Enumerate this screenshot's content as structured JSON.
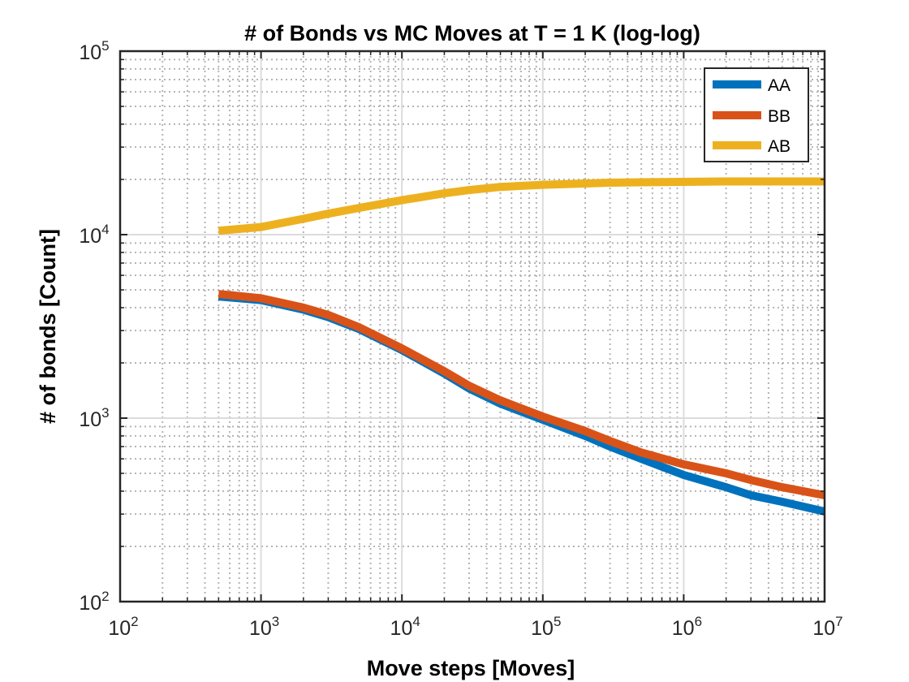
{
  "chart_data": {
    "type": "line",
    "title": "# of Bonds vs MC Moves at T = 1 K (log-log)",
    "xlabel": "Move steps [Moves]",
    "ylabel": "# of bonds [Count]",
    "xscale": "log",
    "yscale": "log",
    "xlim": [
      100,
      10000000
    ],
    "ylim": [
      100,
      100000
    ],
    "grid": true,
    "minor_grid": true,
    "legend_location": "top-right",
    "x_ticks": [
      {
        "base": "10",
        "exp": "2"
      },
      {
        "base": "10",
        "exp": "3"
      },
      {
        "base": "10",
        "exp": "4"
      },
      {
        "base": "10",
        "exp": "5"
      },
      {
        "base": "10",
        "exp": "6"
      },
      {
        "base": "10",
        "exp": "7"
      }
    ],
    "y_ticks": [
      {
        "base": "10",
        "exp": "2"
      },
      {
        "base": "10",
        "exp": "3"
      },
      {
        "base": "10",
        "exp": "4"
      },
      {
        "base": "10",
        "exp": "5"
      }
    ],
    "series": [
      {
        "name": "AA",
        "color": "#0072BD",
        "x": [
          500,
          1000,
          2000,
          3000,
          5000,
          10000,
          20000,
          30000,
          50000,
          100000,
          200000,
          300000,
          500000,
          1000000,
          2000000,
          3000000,
          5000000,
          10000000
        ],
        "y": [
          4600,
          4400,
          3900,
          3550,
          3050,
          2350,
          1750,
          1450,
          1200,
          980,
          800,
          700,
          600,
          490,
          420,
          380,
          350,
          310
        ]
      },
      {
        "name": "BB",
        "color": "#D95319",
        "x": [
          500,
          1000,
          2000,
          3000,
          5000,
          10000,
          20000,
          30000,
          50000,
          100000,
          200000,
          300000,
          500000,
          1000000,
          2000000,
          3000000,
          5000000,
          10000000
        ],
        "y": [
          4750,
          4500,
          4000,
          3650,
          3120,
          2400,
          1800,
          1500,
          1250,
          1020,
          850,
          750,
          650,
          560,
          500,
          460,
          420,
          380
        ]
      },
      {
        "name": "AB",
        "color": "#EDB120",
        "x": [
          500,
          1000,
          2000,
          3000,
          5000,
          10000,
          20000,
          30000,
          50000,
          100000,
          200000,
          300000,
          500000,
          1000000,
          2000000,
          3000000,
          5000000,
          10000000
        ],
        "y": [
          10500,
          11000,
          12200,
          13000,
          14000,
          15400,
          16800,
          17500,
          18200,
          18700,
          19000,
          19200,
          19300,
          19400,
          19500,
          19500,
          19500,
          19500
        ]
      }
    ]
  }
}
